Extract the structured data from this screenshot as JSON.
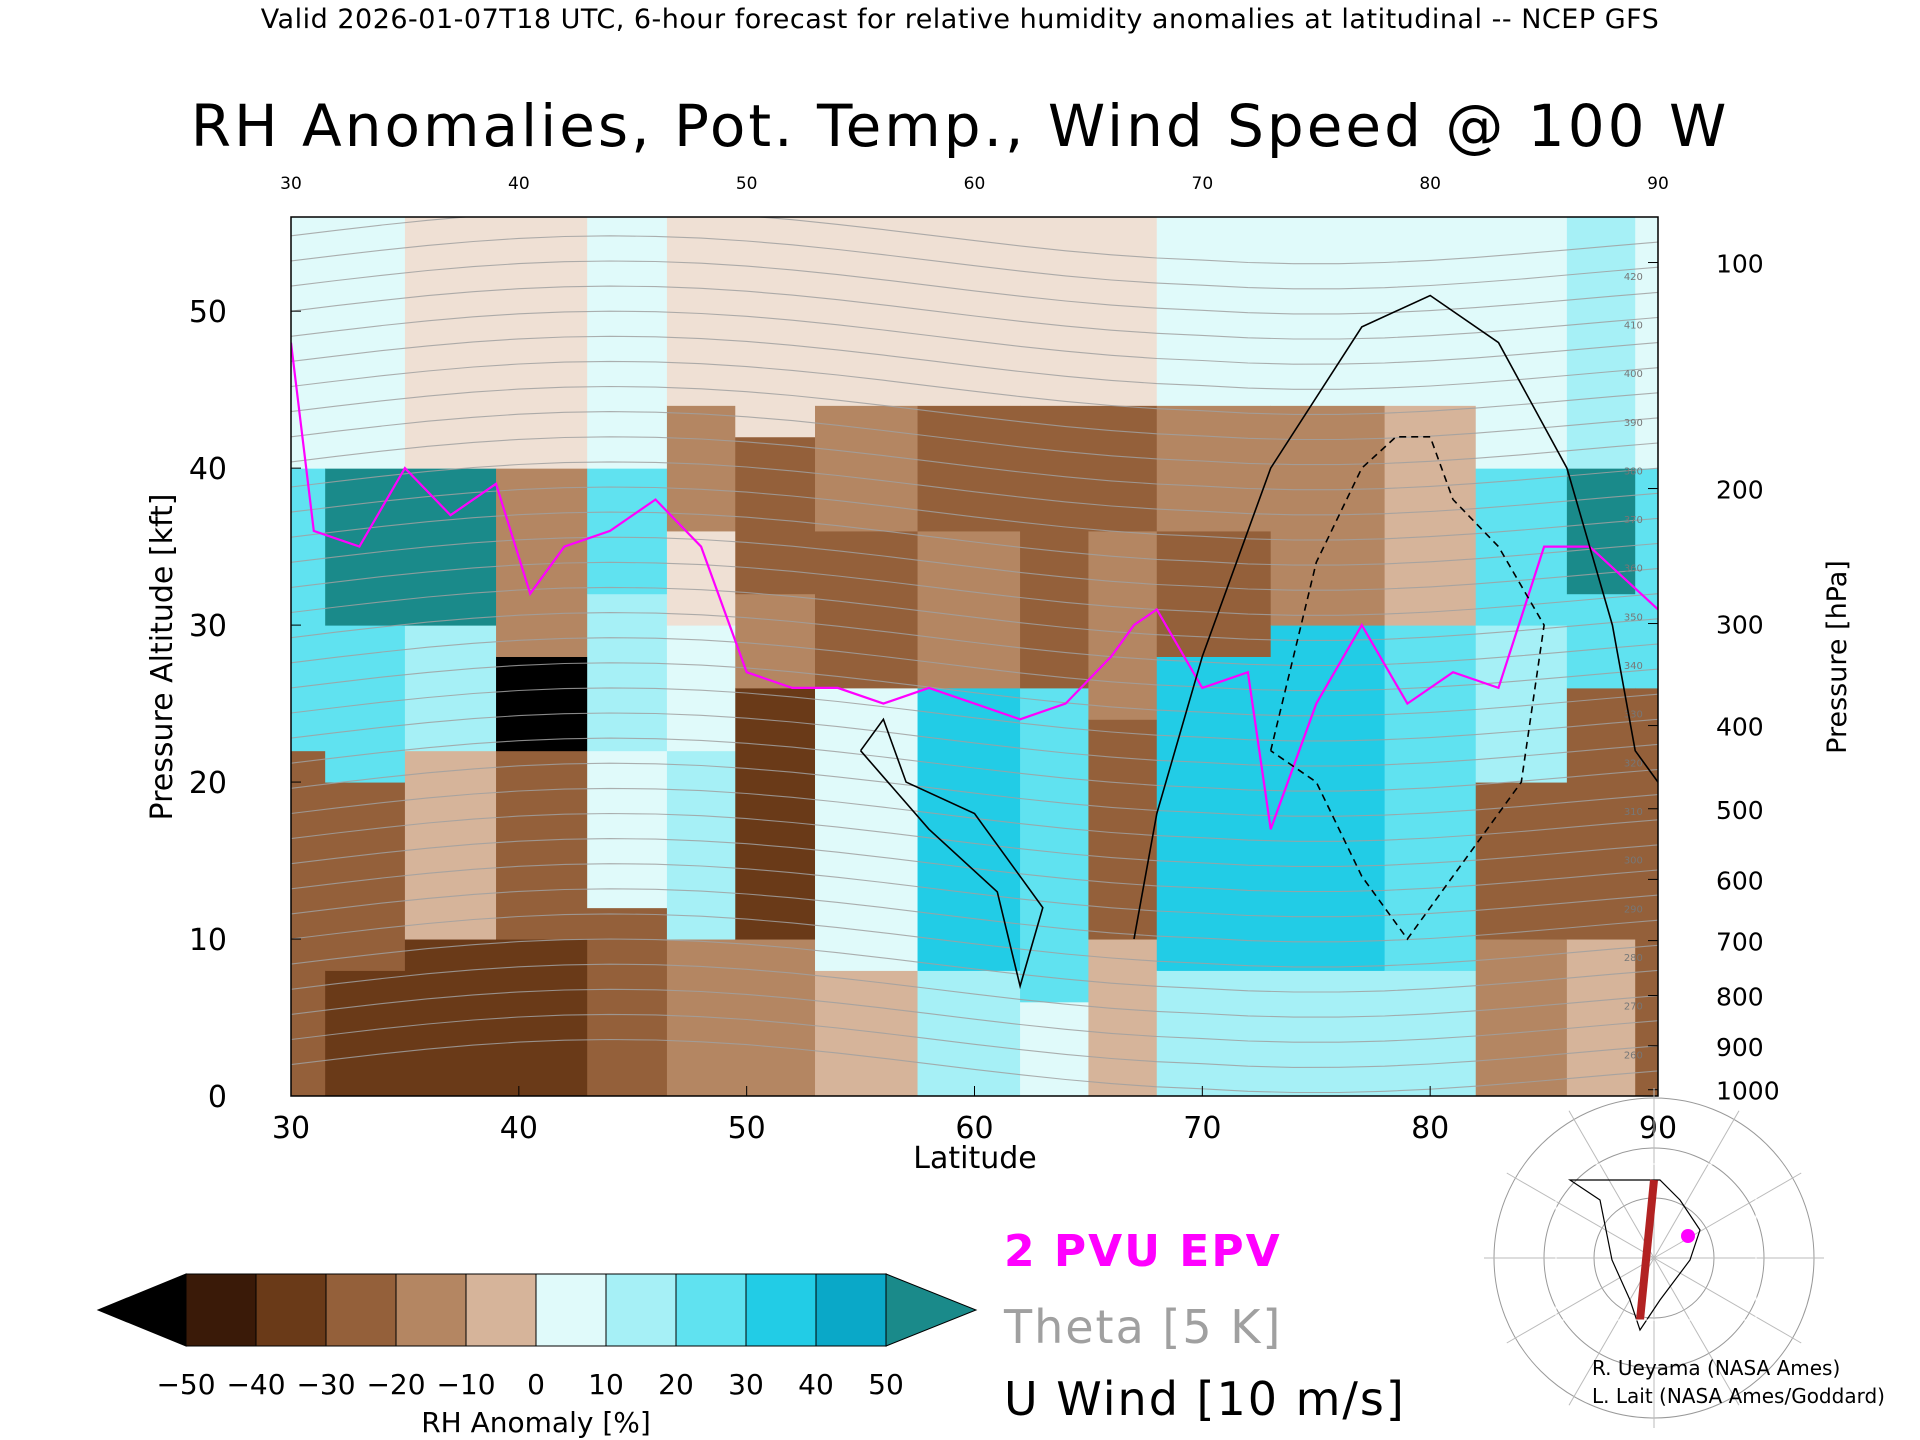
{
  "header": {
    "valid_line": "Valid 2026-01-07T18 UTC, 6-hour forecast for relative humidity anomalies at latitudinal -- NCEP GFS",
    "title": "RH Anomalies, Pot. Temp., Wind Speed @ 100 W"
  },
  "legend": {
    "epv_label": "2 PVU EPV",
    "theta_label": "Theta [5 K]",
    "uwind_label": "U Wind [10 m/s]",
    "epv_color": "#ff00ff",
    "theta_color": "#a0a0a0",
    "uwind_color": "#000000"
  },
  "colorbar": {
    "label": "RH Anomaly [%]",
    "ticks": [
      "−50",
      "−40",
      "−30",
      "−20",
      "−10",
      "0",
      "10",
      "20",
      "30",
      "40",
      "50"
    ],
    "low_color": "#000000",
    "high_color": "#1a8a8a",
    "colors": [
      "#3a1a08",
      "#6a3a18",
      "#94603a",
      "#b48662",
      "#d6b49a",
      "#efe0d4",
      "#e0fafa",
      "#a6f0f6",
      "#60e2f0",
      "#22cce6",
      "#0aa8c8"
    ]
  },
  "credits": {
    "line1": "R. Ueyama (NASA Ames)",
    "line2": "L. Lait (NASA Ames/Goddard)"
  },
  "inset_map": {
    "cross_section_color": "#b22222",
    "marker_color": "#ff00ff"
  },
  "chart_data": {
    "type": "heatmap",
    "xlabel": "Latitude",
    "ylabel": "Pressure Altitude [kft]",
    "y2label": "Pressure [hPa]",
    "xlim": [
      30,
      90
    ],
    "ylim": [
      0,
      56
    ],
    "x_ticks": [
      30,
      40,
      50,
      60,
      70,
      80,
      90
    ],
    "y_ticks": [
      0,
      10,
      20,
      30,
      40,
      50
    ],
    "pressure_ticks": [
      {
        "hpa": "100",
        "kft": 53.1
      },
      {
        "hpa": "200",
        "kft": 38.7
      },
      {
        "hpa": "300",
        "kft": 30.1
      },
      {
        "hpa": "400",
        "kft": 23.6
      },
      {
        "hpa": "500",
        "kft": 18.3
      },
      {
        "hpa": "600",
        "kft": 13.8
      },
      {
        "hpa": "700",
        "kft": 9.9
      },
      {
        "hpa": "800",
        "kft": 6.4
      },
      {
        "hpa": "900",
        "kft": 3.2
      },
      {
        "hpa": "1000",
        "kft": 0.4
      }
    ],
    "rh_anomaly_columns": [
      {
        "lat": 30,
        "bands": [
          [
            0,
            22,
            -30
          ],
          [
            22,
            40,
            30
          ],
          [
            40,
            56,
            10
          ]
        ]
      },
      {
        "lat": 33,
        "bands": [
          [
            0,
            8,
            -45
          ],
          [
            8,
            20,
            -30
          ],
          [
            20,
            30,
            25
          ],
          [
            30,
            40,
            50
          ],
          [
            40,
            56,
            5
          ]
        ]
      },
      {
        "lat": 37,
        "bands": [
          [
            0,
            10,
            -40
          ],
          [
            10,
            22,
            -15
          ],
          [
            22,
            30,
            20
          ],
          [
            30,
            40,
            50
          ],
          [
            40,
            56,
            0
          ]
        ]
      },
      {
        "lat": 41,
        "bands": [
          [
            0,
            10,
            -40
          ],
          [
            10,
            22,
            -30
          ],
          [
            22,
            28,
            -50
          ],
          [
            28,
            40,
            -20
          ],
          [
            40,
            56,
            0
          ]
        ]
      },
      {
        "lat": 45,
        "bands": [
          [
            0,
            12,
            -30
          ],
          [
            12,
            22,
            10
          ],
          [
            22,
            32,
            20
          ],
          [
            32,
            40,
            30
          ],
          [
            40,
            56,
            5
          ]
        ]
      },
      {
        "lat": 48,
        "bands": [
          [
            0,
            10,
            -20
          ],
          [
            10,
            22,
            15
          ],
          [
            22,
            30,
            10
          ],
          [
            30,
            36,
            0
          ],
          [
            36,
            44,
            -20
          ],
          [
            44,
            56,
            0
          ]
        ]
      },
      {
        "lat": 51,
        "bands": [
          [
            0,
            10,
            -20
          ],
          [
            10,
            26,
            -45
          ],
          [
            26,
            32,
            -25
          ],
          [
            32,
            42,
            -30
          ],
          [
            42,
            56,
            -5
          ]
        ]
      },
      {
        "lat": 55,
        "bands": [
          [
            0,
            8,
            -10
          ],
          [
            8,
            26,
            10
          ],
          [
            26,
            36,
            -30
          ],
          [
            36,
            44,
            -25
          ],
          [
            44,
            56,
            0
          ]
        ]
      },
      {
        "lat": 60,
        "bands": [
          [
            0,
            8,
            20
          ],
          [
            8,
            26,
            35
          ],
          [
            26,
            36,
            -25
          ],
          [
            36,
            44,
            -30
          ],
          [
            44,
            56,
            0
          ]
        ]
      },
      {
        "lat": 64,
        "bands": [
          [
            0,
            6,
            10
          ],
          [
            6,
            26,
            30
          ],
          [
            26,
            36,
            -30
          ],
          [
            36,
            44,
            -30
          ],
          [
            44,
            56,
            0
          ]
        ]
      },
      {
        "lat": 66,
        "bands": [
          [
            0,
            10,
            -10
          ],
          [
            10,
            24,
            -30
          ],
          [
            24,
            36,
            -25
          ],
          [
            36,
            44,
            -30
          ],
          [
            44,
            56,
            0
          ]
        ]
      },
      {
        "lat": 70,
        "bands": [
          [
            0,
            8,
            20
          ],
          [
            8,
            28,
            35
          ],
          [
            28,
            36,
            -30
          ],
          [
            36,
            44,
            -25
          ],
          [
            44,
            56,
            5
          ]
        ]
      },
      {
        "lat": 76,
        "bands": [
          [
            0,
            8,
            20
          ],
          [
            8,
            30,
            35
          ],
          [
            30,
            36,
            -20
          ],
          [
            36,
            44,
            -20
          ],
          [
            44,
            56,
            10
          ]
        ]
      },
      {
        "lat": 80,
        "bands": [
          [
            0,
            8,
            20
          ],
          [
            8,
            30,
            30
          ],
          [
            30,
            38,
            -15
          ],
          [
            38,
            44,
            -10
          ],
          [
            44,
            56,
            10
          ]
        ]
      },
      {
        "lat": 84,
        "bands": [
          [
            0,
            10,
            -20
          ],
          [
            10,
            20,
            -30
          ],
          [
            20,
            30,
            15
          ],
          [
            30,
            40,
            30
          ],
          [
            40,
            56,
            10
          ]
        ]
      },
      {
        "lat": 88,
        "bands": [
          [
            0,
            10,
            -15
          ],
          [
            10,
            26,
            -30
          ],
          [
            26,
            32,
            30
          ],
          [
            32,
            40,
            50
          ],
          [
            40,
            56,
            15
          ]
        ]
      },
      {
        "lat": 90,
        "bands": [
          [
            0,
            26,
            -30
          ],
          [
            26,
            40,
            30
          ],
          [
            40,
            56,
            10
          ]
        ]
      }
    ],
    "theta_labels": [
      "420",
      "410",
      "400",
      "390",
      "380",
      "370",
      "360",
      "350",
      "340",
      "330",
      "320",
      "310",
      "300",
      "290",
      "280",
      "270",
      "260"
    ],
    "series": [
      {
        "name": "2 PVU EPV",
        "x": [
          30,
          31,
          33,
          35,
          37,
          39,
          40.5,
          42,
          44,
          46,
          48,
          50,
          52,
          54,
          56,
          58,
          60,
          62,
          64,
          66,
          67,
          68,
          70,
          72,
          73,
          75,
          77,
          79,
          81,
          83,
          85,
          87,
          90
        ],
        "y": [
          48,
          36,
          35,
          40,
          37,
          39,
          32,
          35,
          36,
          38,
          35,
          27,
          26,
          26,
          25,
          26,
          25,
          24,
          25,
          28,
          30,
          31,
          26,
          27,
          17,
          25,
          30,
          25,
          27,
          26,
          35,
          35,
          31
        ]
      },
      {
        "name": "U Wind 10 m/s",
        "x": [
          55,
          58,
          61,
          62,
          63,
          60,
          57,
          56,
          55
        ],
        "y": [
          22,
          17,
          13,
          7,
          12,
          18,
          20,
          24,
          22
        ]
      },
      {
        "name": "U Wind 0 m/s",
        "x": [
          67,
          68,
          70,
          73,
          77,
          80,
          83,
          86,
          88,
          89,
          90
        ],
        "y": [
          10,
          18,
          28,
          40,
          49,
          51,
          48,
          40,
          30,
          22,
          20
        ]
      },
      {
        "name": "U Wind -10 m/s",
        "x": [
          73,
          75,
          77,
          78.5,
          80,
          81,
          83,
          85,
          84,
          82,
          79,
          77,
          75,
          73
        ],
        "y": [
          22,
          34,
          40,
          42,
          42,
          38,
          35,
          30,
          20,
          16,
          10,
          14,
          20,
          22
        ]
      }
    ]
  }
}
